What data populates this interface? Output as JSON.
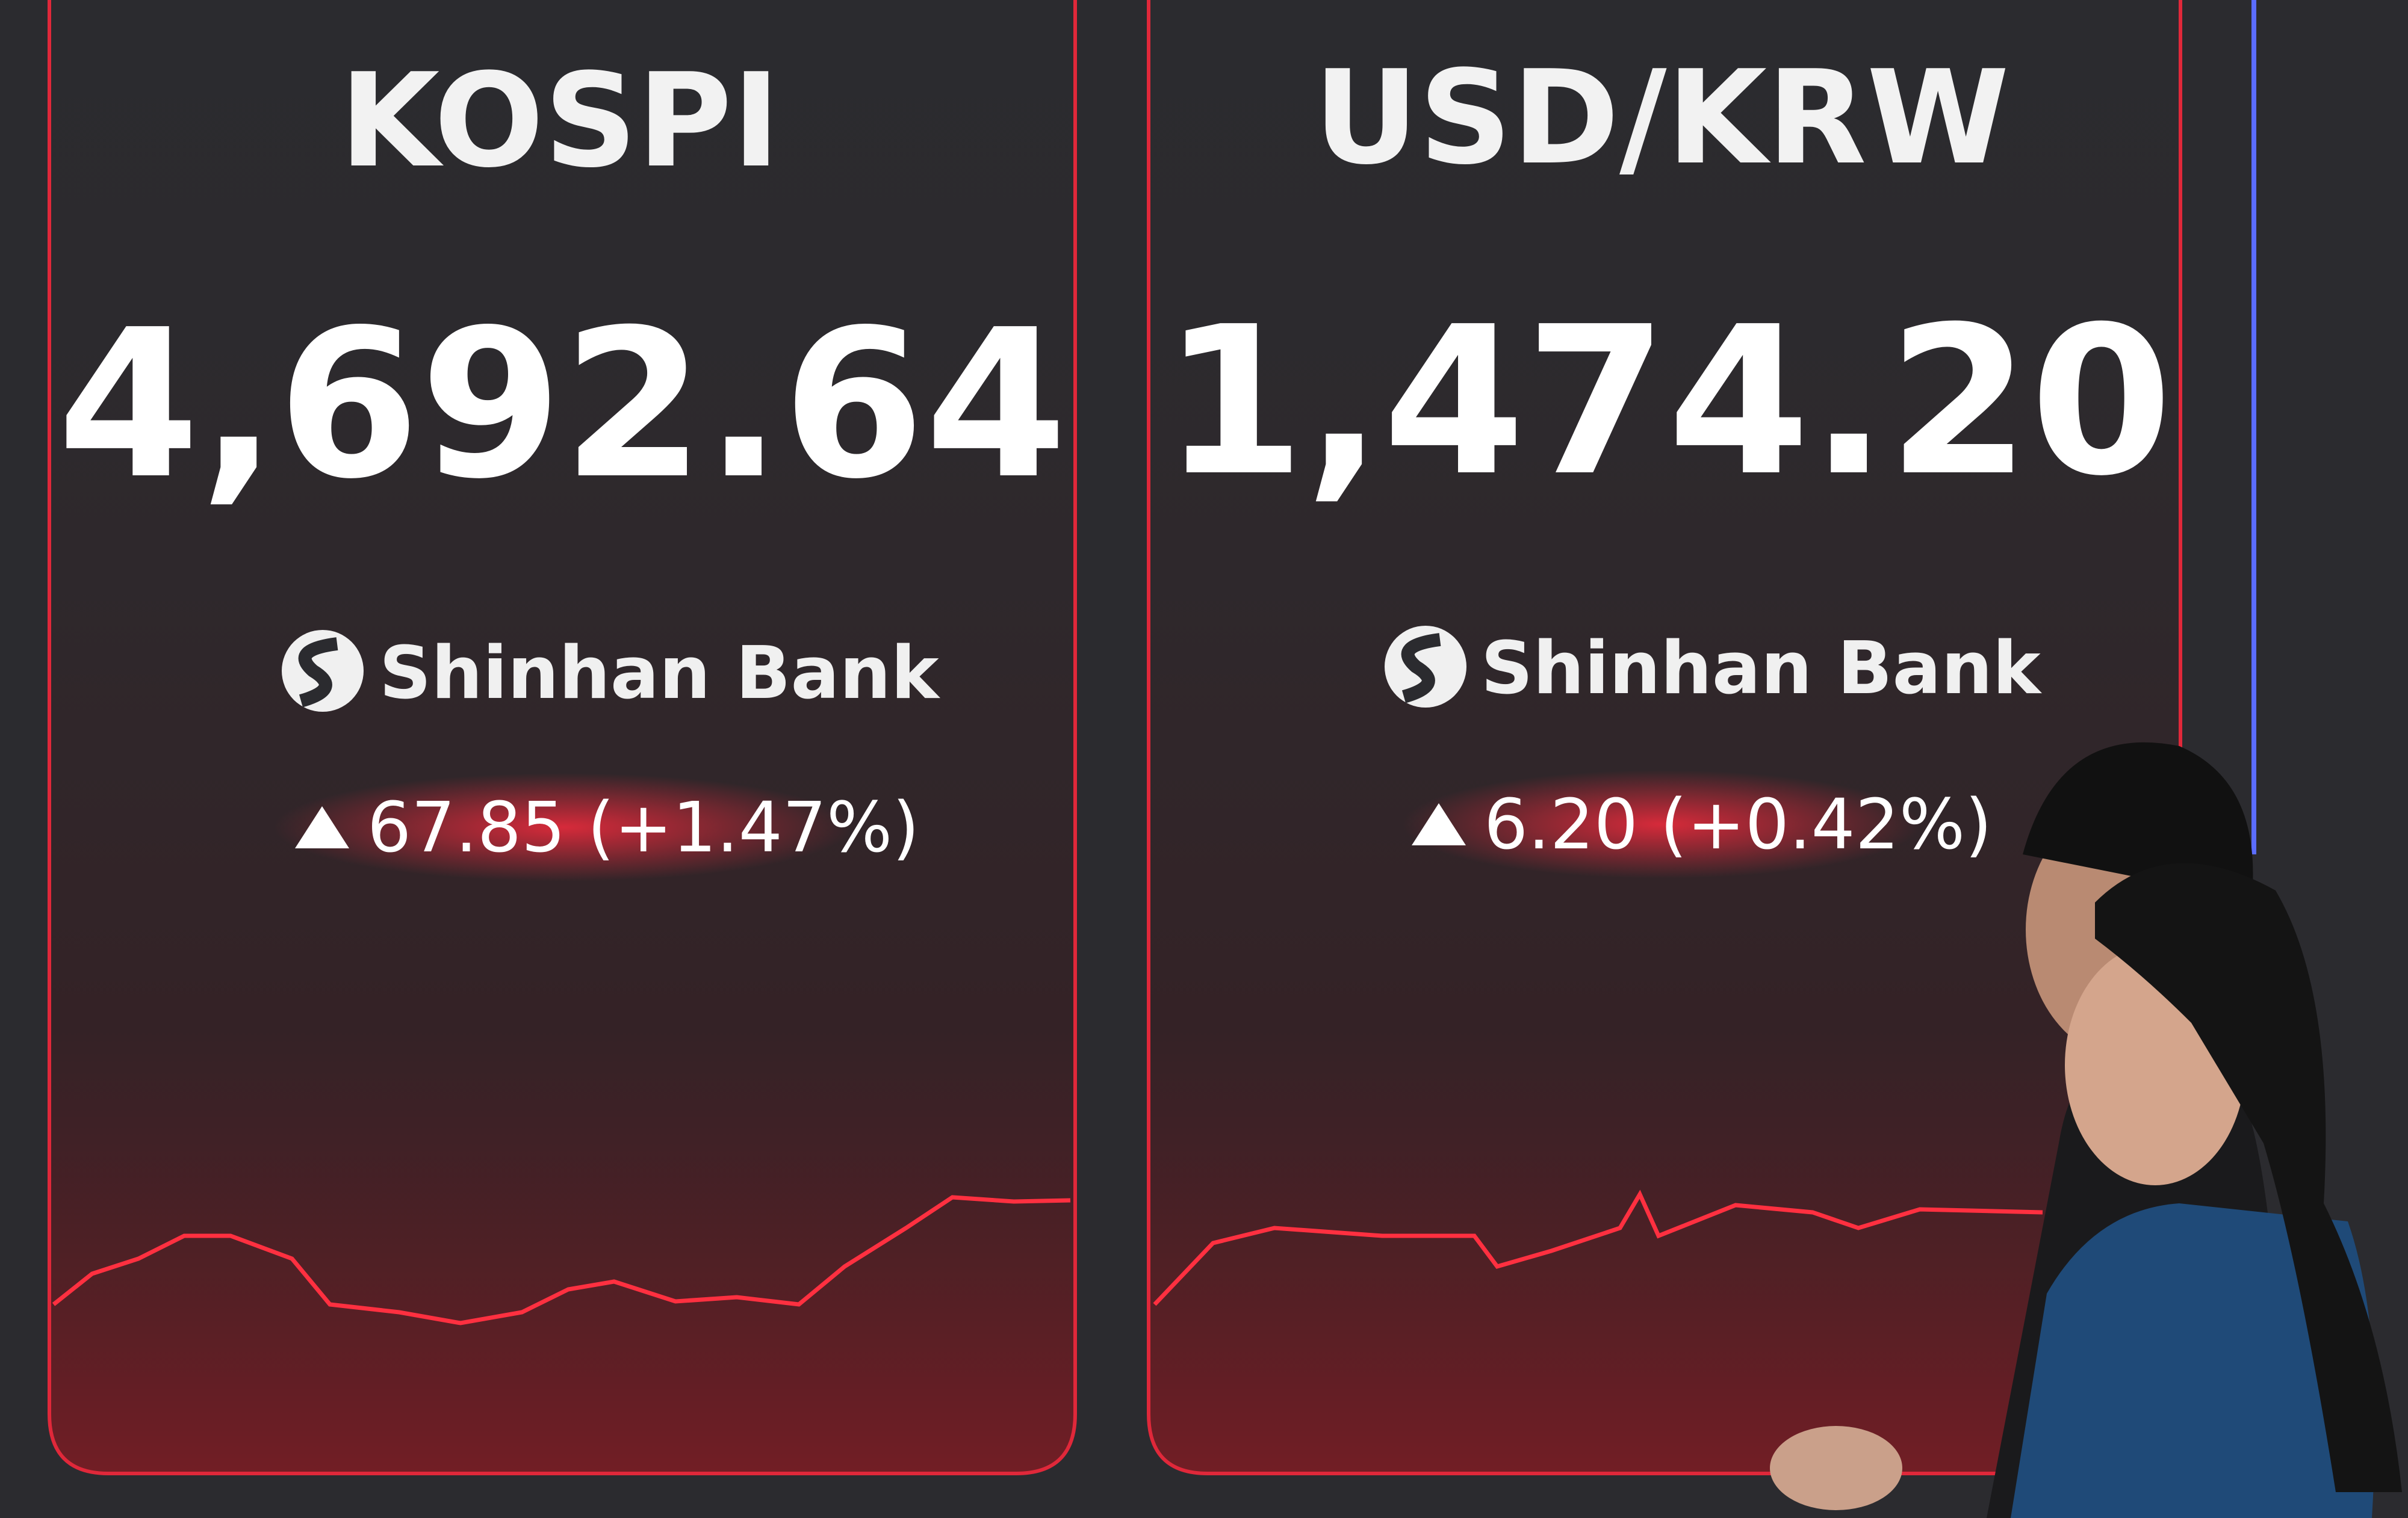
{
  "panels": [
    {
      "title": "KOSPI",
      "value": "4,692.64",
      "brand": "Shinhan Bank",
      "change": "67.85 (+1.47%)"
    },
    {
      "title": "USD/KRW",
      "value": "1,474.20",
      "brand": "Shinhan Bank",
      "change": "6.20 (+0.42%)"
    }
  ]
}
